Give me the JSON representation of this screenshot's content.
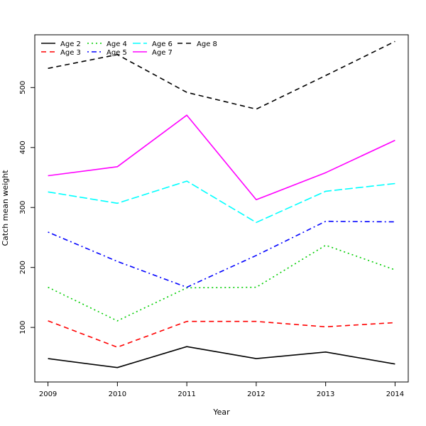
{
  "chart_data": {
    "type": "line",
    "title": "",
    "xlabel": "Year",
    "ylabel": "Catch mean weight",
    "x": [
      2009,
      2010,
      2011,
      2012,
      2013,
      2014
    ],
    "xlim": [
      2008.81,
      2014.19
    ],
    "ylim": [
      9,
      588
    ],
    "yticks": [
      100,
      200,
      300,
      400,
      500
    ],
    "grid": false,
    "legend_position": "top-left",
    "series": [
      {
        "name": "Age 2",
        "color": "#000000",
        "dash": "solid",
        "values": [
          48,
          33,
          68,
          48,
          59,
          39
        ]
      },
      {
        "name": "Age 3",
        "color": "#ff0000",
        "dash": "dashed",
        "values": [
          111,
          67,
          110,
          110,
          101,
          108
        ]
      },
      {
        "name": "Age 4",
        "color": "#00cd00",
        "dash": "dotted",
        "values": [
          167,
          111,
          166,
          167,
          237,
          196
        ]
      },
      {
        "name": "Age 5",
        "color": "#0000ff",
        "dash": "dotdash",
        "values": [
          259,
          210,
          167,
          220,
          277,
          276
        ]
      },
      {
        "name": "Age 6",
        "color": "#00ffff",
        "dash": "longdash",
        "values": [
          326,
          307,
          344,
          275,
          327,
          340
        ]
      },
      {
        "name": "Age 7",
        "color": "#ff00ff",
        "dash": "solid",
        "values": [
          353,
          368,
          454,
          313,
          358,
          412
        ]
      },
      {
        "name": "Age 8",
        "color": "#000000",
        "dash": "dashed",
        "values": [
          532,
          555,
          492,
          464,
          520,
          577
        ]
      }
    ]
  }
}
